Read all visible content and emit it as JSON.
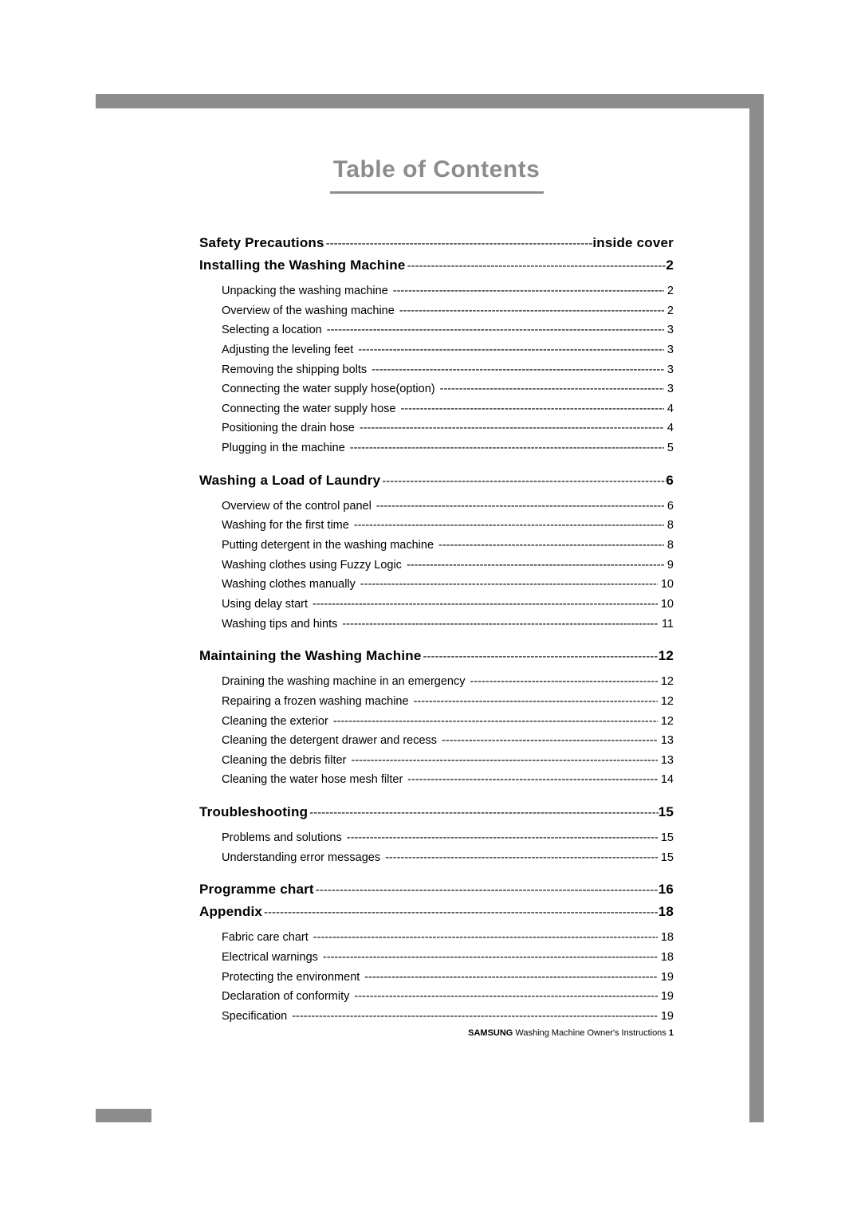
{
  "title": "Table of Contents",
  "sections": [
    {
      "label": "Safety Precautions",
      "page": "inside cover",
      "items": []
    },
    {
      "label": "Installing the Washing Machine",
      "page": "2",
      "items": [
        {
          "label": "Unpacking the washing machine",
          "page": "2"
        },
        {
          "label": "Overview of the washing machine",
          "page": "2"
        },
        {
          "label": "Selecting a location",
          "page": "3"
        },
        {
          "label": "Adjusting the leveling feet",
          "page": "3"
        },
        {
          "label": "Removing the shipping bolts",
          "page": "3"
        },
        {
          "label": "Connecting the water supply hose(option)",
          "page": "3"
        },
        {
          "label": "Connecting the water supply hose",
          "page": "4"
        },
        {
          "label": "Positioning the drain hose",
          "page": "4"
        },
        {
          "label": "Plugging in the machine",
          "page": "5"
        }
      ]
    },
    {
      "label": "Washing a Load of Laundry",
      "page": "6",
      "items": [
        {
          "label": "Overview of the control panel",
          "page": "6"
        },
        {
          "label": "Washing for the first time",
          "page": "8"
        },
        {
          "label": "Putting detergent in the washing machine",
          "page": "8"
        },
        {
          "label": "Washing clothes using Fuzzy Logic",
          "page": "9"
        },
        {
          "label": "Washing clothes manually",
          "page": "10"
        },
        {
          "label": "Using delay start",
          "page": "10"
        },
        {
          "label": "Washing tips and hints",
          "page": "11"
        }
      ]
    },
    {
      "label": "Maintaining the Washing Machine",
      "page": "12",
      "items": [
        {
          "label": "Draining the washing machine in an emergency",
          "page": "12"
        },
        {
          "label": "Repairing a frozen washing machine",
          "page": "12"
        },
        {
          "label": "Cleaning the exterior",
          "page": "12"
        },
        {
          "label": "Cleaning the detergent drawer and recess",
          "page": "13"
        },
        {
          "label": "Cleaning the debris filter",
          "page": "13"
        },
        {
          "label": "Cleaning the water hose mesh filter",
          "page": "14"
        }
      ]
    },
    {
      "label": "Troubleshooting",
      "page": "15",
      "items": [
        {
          "label": "Problems and solutions",
          "page": "15"
        },
        {
          "label": "Understanding error messages",
          "page": "15"
        }
      ]
    },
    {
      "label": "Programme chart",
      "page": "16",
      "items": []
    },
    {
      "label": "Appendix",
      "page": "18",
      "items": [
        {
          "label": "Fabric care chart",
          "page": "18"
        },
        {
          "label": "Electrical warnings",
          "page": "18"
        },
        {
          "label": "Protecting the environment",
          "page": "19"
        },
        {
          "label": "Declaration of conformity",
          "page": "19"
        },
        {
          "label": "Specification",
          "page": "19"
        }
      ]
    }
  ],
  "footer": {
    "brand": "SAMSUNG",
    "text": "Washing Machine Owner's Instructions",
    "page": "1"
  }
}
